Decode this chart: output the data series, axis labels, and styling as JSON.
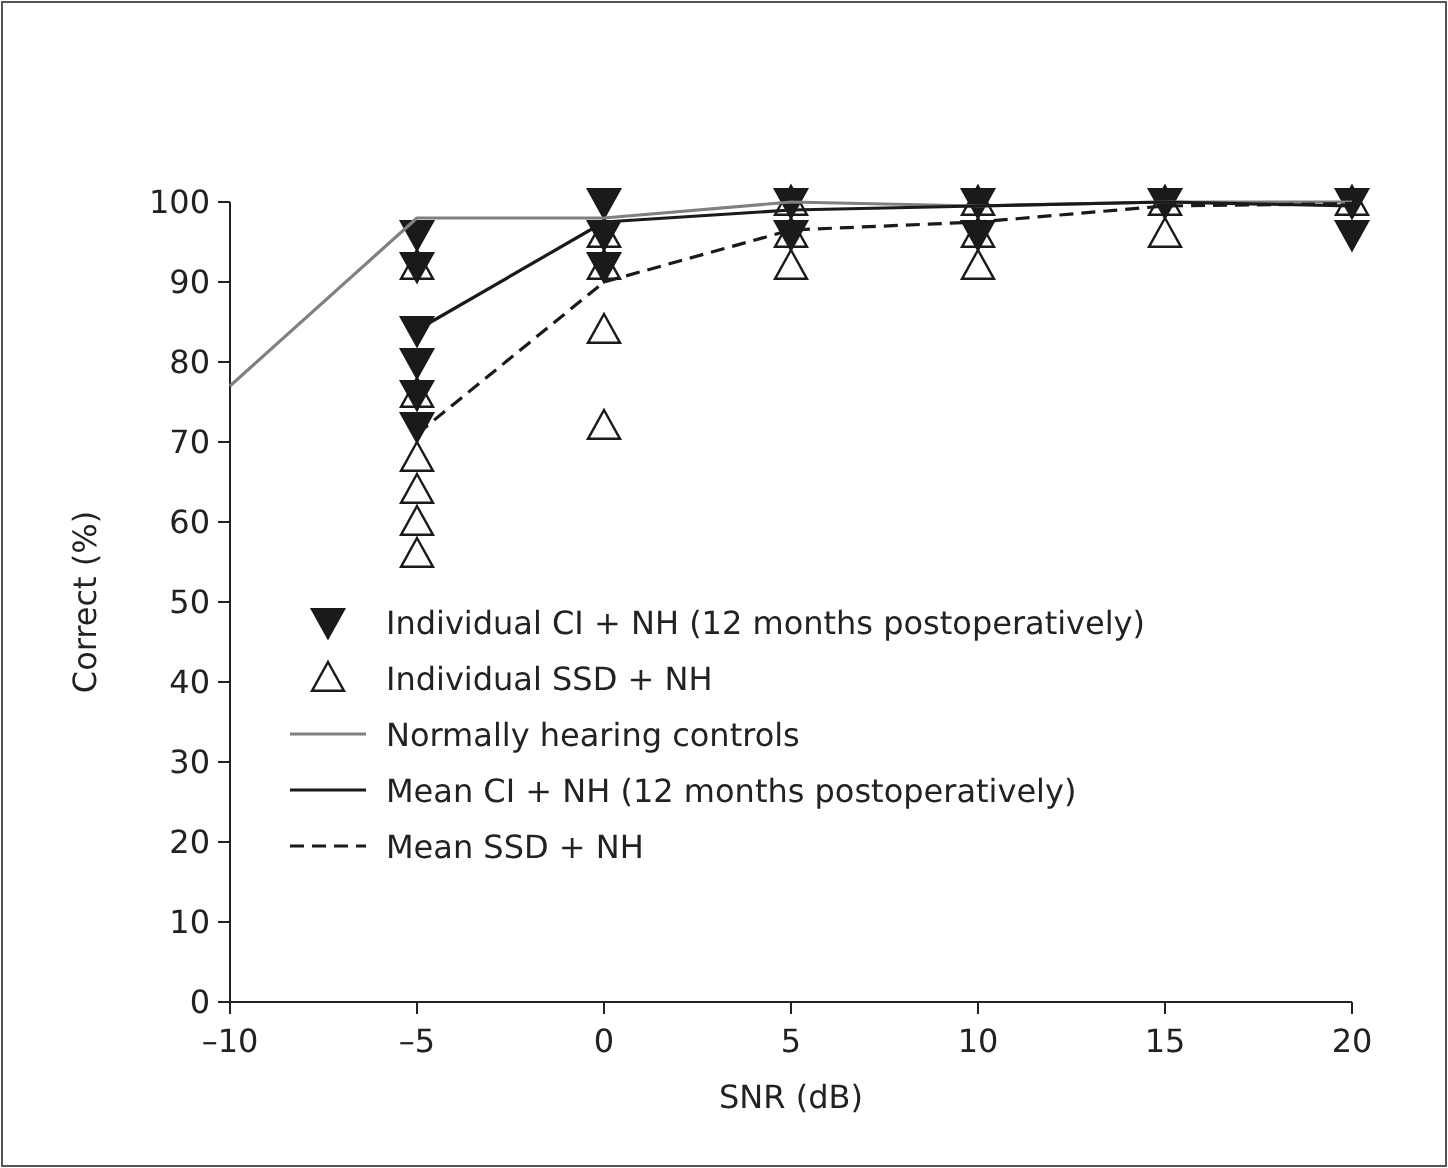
{
  "chart_data": {
    "type": "scatter",
    "xlabel": "SNR (dB)",
    "ylabel": "Correct (%)",
    "xlim": [
      -10,
      20
    ],
    "xticks": [
      {
        "value": -10,
        "label": "–10"
      },
      {
        "value": -5,
        "label": "–5"
      },
      0,
      5,
      10,
      15,
      20
    ],
    "ylim": [
      0,
      100
    ],
    "yticks": [
      0,
      10,
      20,
      30,
      40,
      50,
      60,
      70,
      80,
      90,
      100
    ],
    "grid": false,
    "legend": "bottom left",
    "series": [
      {
        "name": "Individual CI + NH (12 months postoperatively)",
        "marker": "triangle-down",
        "color": "#1a1a1a",
        "x": [
          -5,
          -5,
          -5,
          -5,
          -5,
          -5,
          0,
          0,
          0,
          5,
          5,
          10,
          10,
          15,
          20,
          20
        ],
        "values": [
          96,
          92,
          84,
          80,
          76,
          72,
          100,
          96,
          92,
          100,
          96,
          100,
          96,
          100,
          100,
          96
        ]
      },
      {
        "name": "Individual SSD + NH",
        "marker": "triangle",
        "color": "#1a1a1a",
        "x": [
          -5,
          -5,
          -5,
          -5,
          -5,
          -5,
          0,
          0,
          0,
          0,
          5,
          5,
          5,
          10,
          10,
          10,
          15,
          15,
          20
        ],
        "values": [
          92,
          76,
          68,
          64,
          60,
          56,
          96,
          92,
          84,
          72,
          100,
          96,
          92,
          100,
          96,
          92,
          100,
          96,
          100
        ]
      },
      {
        "name": "Normally hearing controls",
        "type": "line",
        "marker": "none",
        "line_style": "solid",
        "color": "#808080",
        "x": [
          -10,
          -5,
          0,
          5,
          10,
          15,
          20
        ],
        "values": [
          77,
          98,
          98,
          100,
          99.5,
          100,
          100
        ]
      },
      {
        "name": "Mean CI + NH (12 months postoperatively)",
        "type": "line",
        "marker": "none",
        "line_style": "solid",
        "color": "#1a1a1a",
        "x": [
          -5,
          0,
          5,
          10,
          15,
          20
        ],
        "values": [
          84,
          97.5,
          99,
          99.5,
          100,
          99.5
        ]
      },
      {
        "name": "Mean SSD + NH",
        "type": "line",
        "marker": "none",
        "line_style": "dashed",
        "color": "#1a1a1a",
        "x": [
          -5,
          0,
          5,
          10,
          15,
          20
        ],
        "values": [
          71,
          90,
          96.5,
          97.5,
          99.5,
          99.8
        ]
      }
    ]
  }
}
